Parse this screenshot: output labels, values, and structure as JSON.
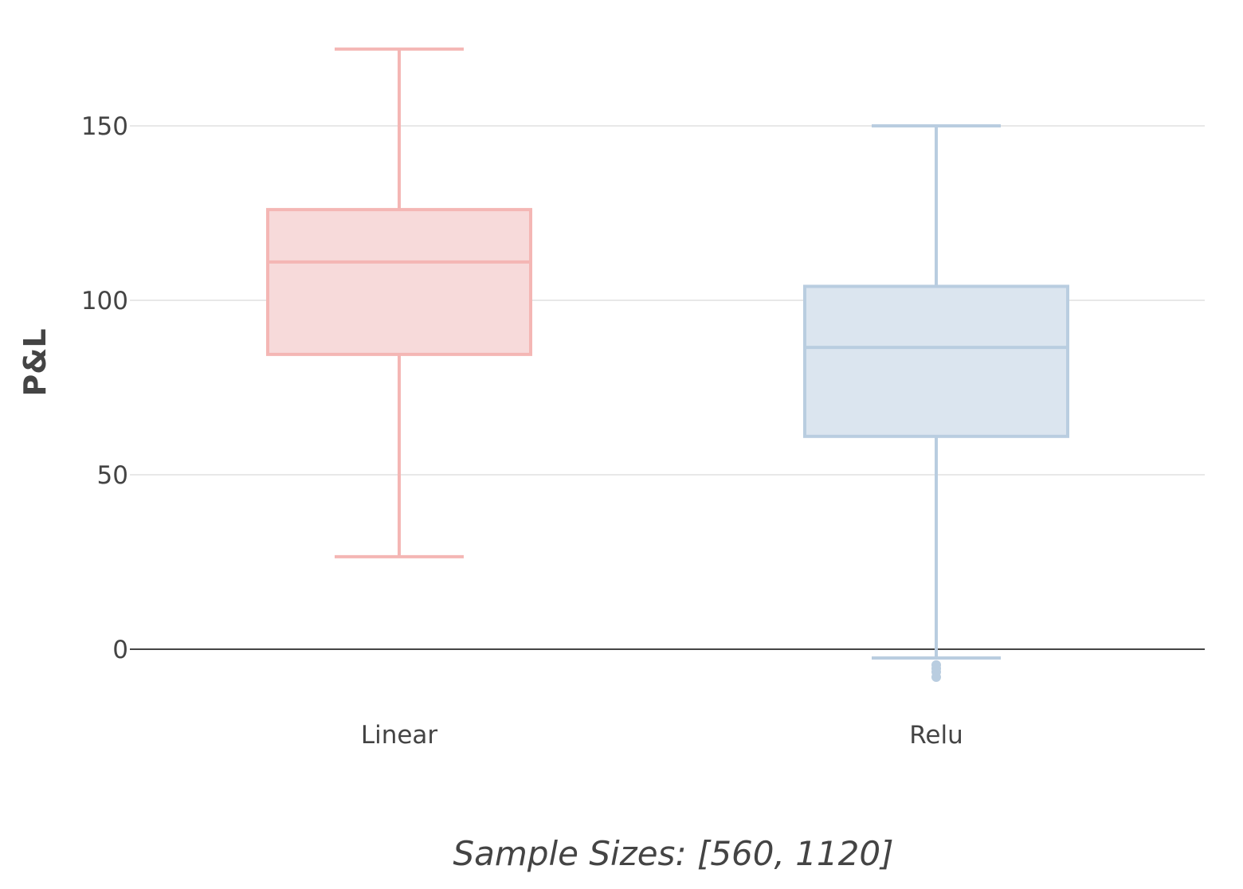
{
  "chart_data": {
    "type": "box",
    "title": "",
    "xlabel": "Sample Sizes: [560, 1120]",
    "ylabel": "P&L",
    "ylim": [
      -15,
      180
    ],
    "yticks": [
      0,
      50,
      100,
      150
    ],
    "ytick_labels": [
      "0",
      "50",
      "100",
      "150"
    ],
    "grid": true,
    "legend": "none",
    "categories": [
      "Linear",
      "Relu"
    ],
    "series": [
      {
        "category": "Linear",
        "color": "#f4b6b4",
        "fill": "#f7dada",
        "min": 26.5,
        "q1": 84.5,
        "median": 111,
        "q3": 126,
        "max": 172,
        "outliers": []
      },
      {
        "category": "Relu",
        "color": "#b9cde0",
        "fill": "#dbe5ef",
        "min": -2.5,
        "q1": 61,
        "median": 86.5,
        "q3": 104,
        "max": 150,
        "outliers": [
          -4.5,
          -5.5,
          -6.5,
          -8
        ]
      }
    ]
  }
}
